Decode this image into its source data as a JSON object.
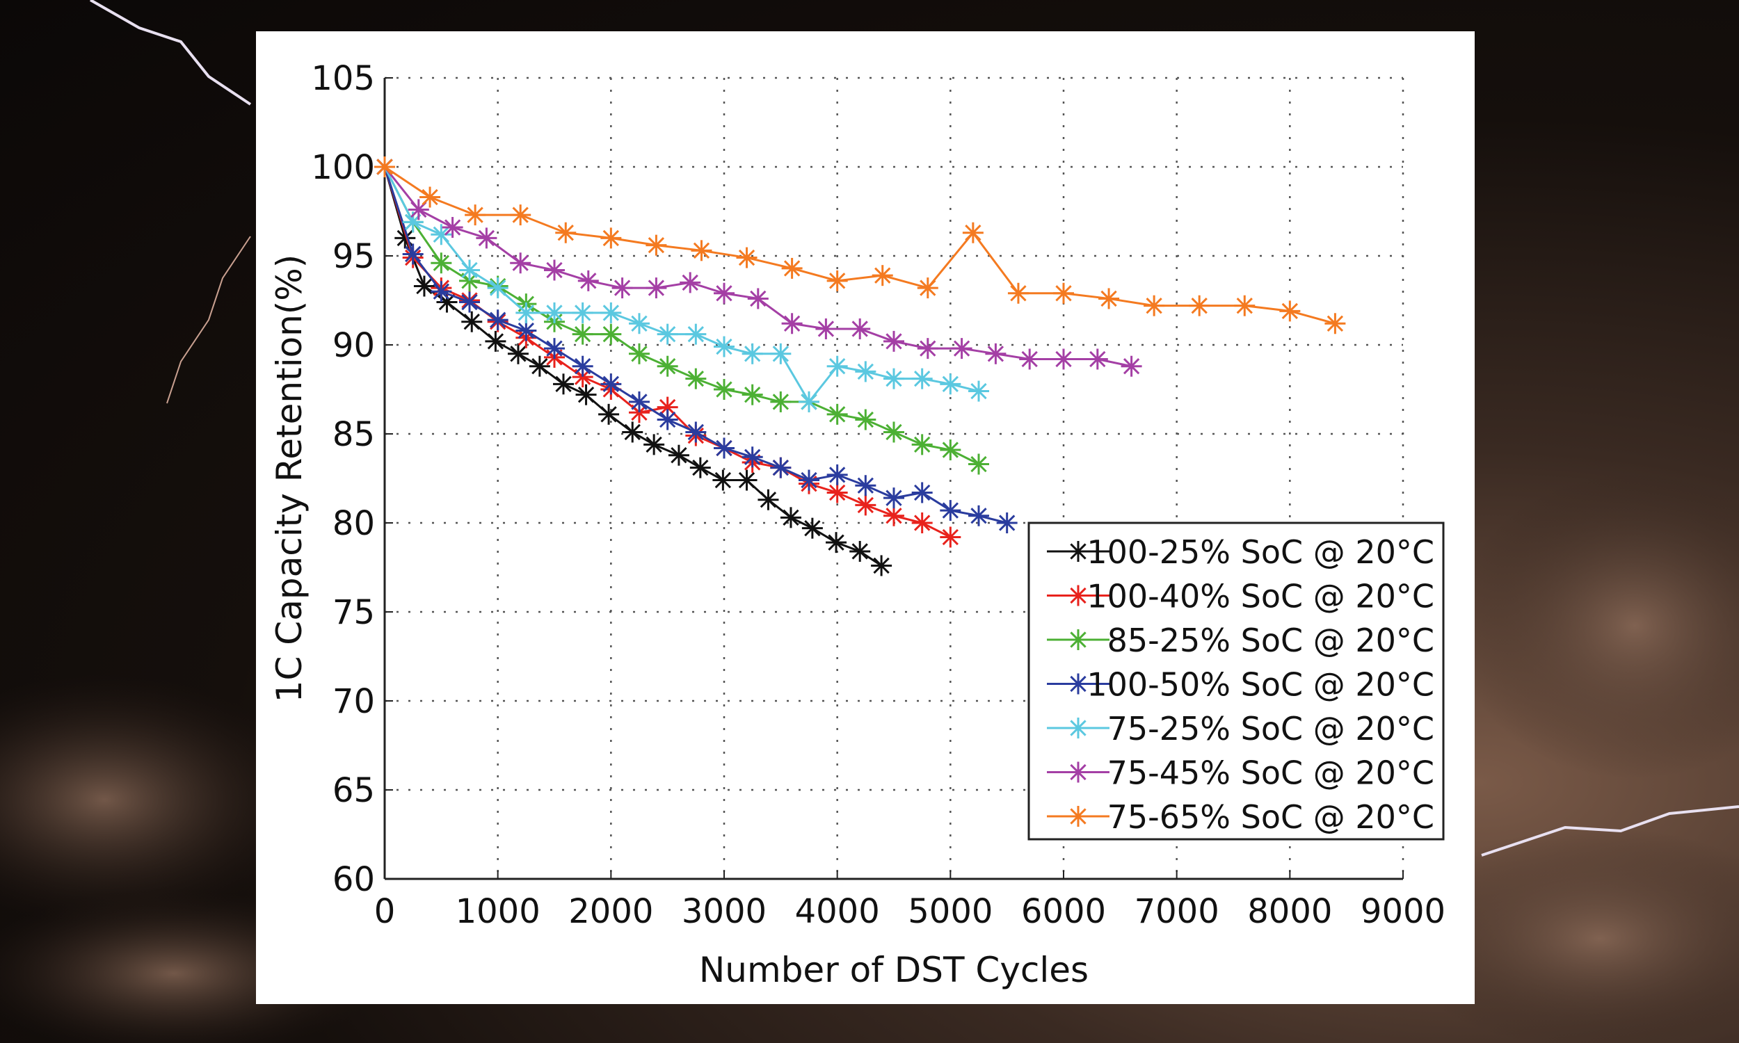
{
  "chart_data": {
    "type": "line",
    "title": "",
    "xlabel": "Number of DST Cycles",
    "ylabel": "1C Capacity Retention(%)",
    "xlim": [
      0,
      9000
    ],
    "ylim": [
      60,
      105
    ],
    "xticks": [
      0,
      1000,
      2000,
      3000,
      4000,
      5000,
      6000,
      7000,
      8000,
      9000
    ],
    "yticks": [
      60,
      65,
      70,
      75,
      80,
      85,
      90,
      95,
      100,
      105
    ],
    "grid": true,
    "legend_position": "bottom-right",
    "marker": "asterisk",
    "series": [
      {
        "name": "100-25% SoC @ 20°C",
        "color": "#111111",
        "x": [
          0,
          180,
          350,
          550,
          770,
          980,
          1180,
          1370,
          1580,
          1780,
          1980,
          2190,
          2380,
          2600,
          2790,
          2990,
          3200,
          3390,
          3590,
          3780,
          3990,
          4200,
          4390
        ],
        "y": [
          100,
          96.0,
          93.3,
          92.4,
          91.3,
          90.2,
          89.5,
          88.8,
          87.8,
          87.2,
          86.1,
          85.1,
          84.4,
          83.8,
          83.1,
          82.4,
          82.4,
          81.3,
          80.3,
          79.7,
          78.9,
          78.4,
          77.6
        ]
      },
      {
        "name": "100-40% SoC @ 20°C",
        "color": "#e8221c",
        "x": [
          0,
          250,
          500,
          750,
          1000,
          1250,
          1500,
          1750,
          2000,
          2250,
          2500,
          2750,
          3000,
          3250,
          3500,
          3750,
          4000,
          4250,
          4500,
          4750,
          5000
        ],
        "y": [
          100,
          94.9,
          93.2,
          92.5,
          91.3,
          90.4,
          89.3,
          88.2,
          87.5,
          86.2,
          86.5,
          84.9,
          84.2,
          83.4,
          83.1,
          82.2,
          81.7,
          81.0,
          80.4,
          80.0,
          79.2
        ]
      },
      {
        "name": "85-25% SoC @ 20°C",
        "color": "#4cb034",
        "x": [
          0,
          250,
          500,
          750,
          1000,
          1250,
          1500,
          1750,
          2000,
          2250,
          2500,
          2750,
          3000,
          3250,
          3500,
          3750,
          4000,
          4250,
          4500,
          4750,
          5000,
          5250
        ],
        "y": [
          100,
          96.9,
          94.6,
          93.6,
          93.3,
          92.3,
          91.3,
          90.6,
          90.6,
          89.5,
          88.8,
          88.1,
          87.5,
          87.2,
          86.8,
          86.8,
          86.1,
          85.8,
          85.1,
          84.4,
          84.1,
          83.3
        ]
      },
      {
        "name": "100-50% SoC @ 20°C",
        "color": "#2a3c9e",
        "x": [
          0,
          250,
          500,
          750,
          1000,
          1250,
          1500,
          1750,
          2000,
          2250,
          2500,
          2750,
          3000,
          3250,
          3500,
          3750,
          4000,
          4250,
          4500,
          4750,
          5000,
          5250,
          5500
        ],
        "y": [
          100,
          95.1,
          93.0,
          92.4,
          91.4,
          90.8,
          89.8,
          88.8,
          87.8,
          86.8,
          85.8,
          85.1,
          84.2,
          83.7,
          83.1,
          82.4,
          82.7,
          82.1,
          81.4,
          81.7,
          80.7,
          80.4,
          80.0
        ]
      },
      {
        "name": "75-25% SoC @ 20°C",
        "color": "#5bc8e0",
        "x": [
          0,
          250,
          500,
          750,
          1000,
          1250,
          1500,
          1750,
          2000,
          2250,
          2500,
          2750,
          3000,
          3250,
          3500,
          3750,
          4000,
          4250,
          4500,
          4750,
          5000,
          5250
        ],
        "y": [
          100,
          96.9,
          96.2,
          94.2,
          93.2,
          91.8,
          91.8,
          91.8,
          91.8,
          91.2,
          90.6,
          90.6,
          89.9,
          89.5,
          89.5,
          86.8,
          88.8,
          88.5,
          88.1,
          88.1,
          87.8,
          87.4
        ]
      },
      {
        "name": "75-45% SoC @ 20°C",
        "color": "#a43fa5",
        "x": [
          0,
          300,
          600,
          900,
          1200,
          1500,
          1800,
          2100,
          2400,
          2700,
          3000,
          3300,
          3600,
          3900,
          4200,
          4500,
          4800,
          5100,
          5400,
          5700,
          6000,
          6300,
          6600
        ],
        "y": [
          100,
          97.6,
          96.6,
          96.0,
          94.6,
          94.2,
          93.6,
          93.2,
          93.2,
          93.5,
          92.9,
          92.6,
          91.2,
          90.9,
          90.9,
          90.2,
          89.8,
          89.8,
          89.5,
          89.2,
          89.2,
          89.2,
          88.8
        ]
      },
      {
        "name": "75-65% SoC @ 20°C",
        "color": "#f47a20",
        "x": [
          0,
          400,
          800,
          1200,
          1600,
          2000,
          2400,
          2800,
          3200,
          3600,
          4000,
          4400,
          4800,
          5200,
          5600,
          6000,
          6400,
          6800,
          7200,
          7600,
          8000,
          8400
        ],
        "y": [
          100,
          98.3,
          97.3,
          97.3,
          96.3,
          96.0,
          95.6,
          95.3,
          94.9,
          94.3,
          93.6,
          93.9,
          93.2,
          96.3,
          92.9,
          92.9,
          92.6,
          92.2,
          92.2,
          92.2,
          91.9,
          91.2
        ]
      }
    ]
  }
}
